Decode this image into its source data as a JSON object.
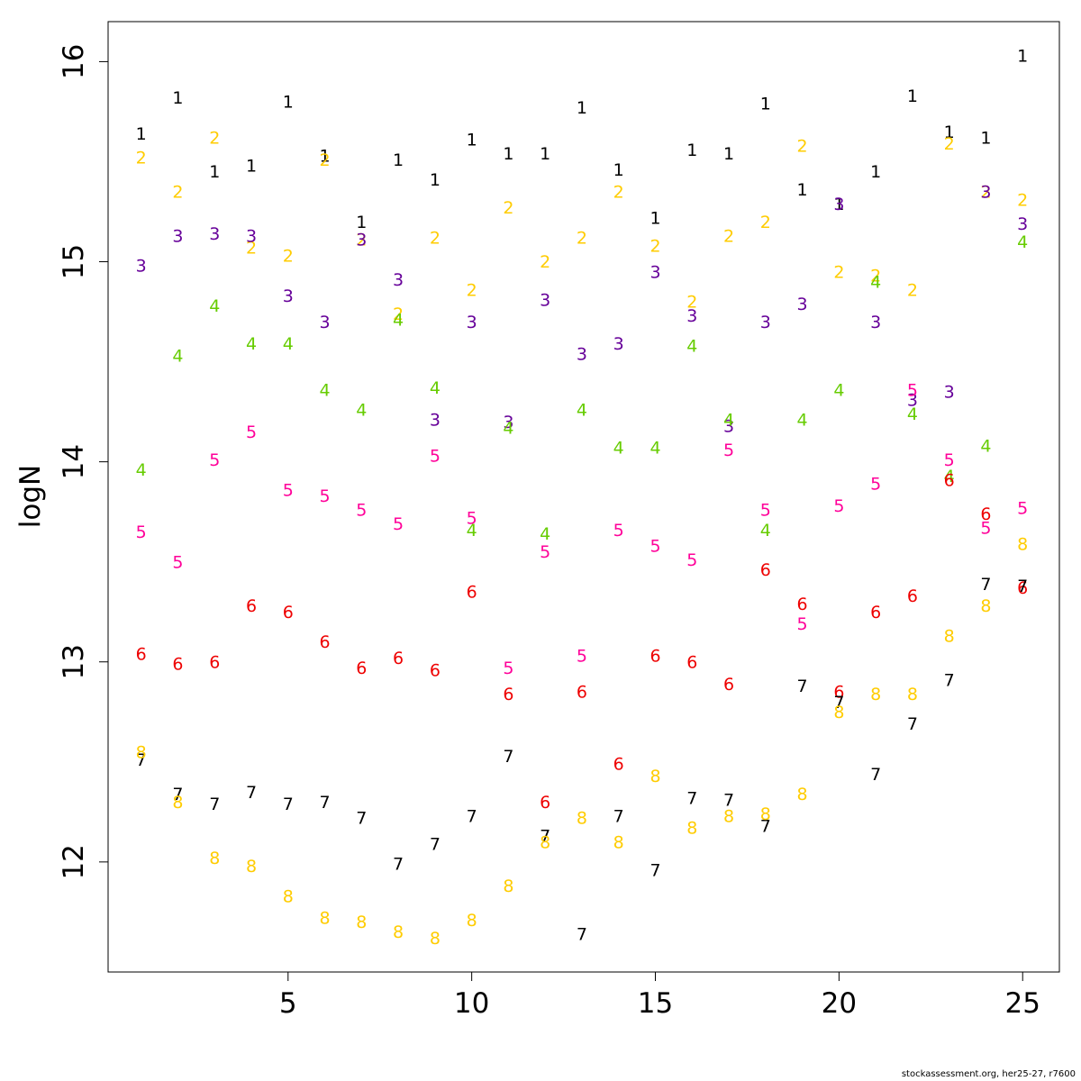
{
  "chart_data": {
    "type": "scatter",
    "ylabel": "logN",
    "xlim": [
      0.1,
      26
    ],
    "ylim": [
      11.45,
      16.2
    ],
    "x_ticks": [
      5,
      10,
      15,
      20,
      25
    ],
    "y_ticks": [
      12,
      13,
      14,
      15,
      16
    ],
    "x": [
      1,
      2,
      3,
      4,
      5,
      6,
      7,
      8,
      9,
      10,
      11,
      12,
      13,
      14,
      15,
      16,
      17,
      18,
      19,
      20,
      21,
      22,
      23,
      24,
      25
    ],
    "series": [
      {
        "name": "1",
        "color": "#000000",
        "values": [
          15.64,
          15.82,
          15.45,
          15.48,
          15.8,
          15.53,
          15.2,
          15.51,
          15.41,
          15.61,
          15.54,
          15.54,
          15.77,
          15.46,
          15.22,
          15.56,
          15.54,
          15.79,
          15.36,
          15.29,
          15.45,
          15.83,
          15.65,
          15.62,
          16.03
        ]
      },
      {
        "name": "2",
        "color": "#FFCC00",
        "values": [
          15.52,
          15.35,
          15.62,
          15.07,
          15.03,
          15.51,
          15.11,
          14.74,
          15.12,
          14.86,
          15.27,
          15.0,
          15.12,
          15.35,
          15.08,
          14.8,
          15.13,
          15.2,
          15.58,
          14.95,
          14.93,
          14.86,
          15.59,
          15.35,
          15.31
        ]
      },
      {
        "name": "3",
        "color": "#660099",
        "values": [
          14.98,
          15.13,
          15.14,
          15.13,
          14.83,
          14.7,
          15.11,
          14.91,
          14.21,
          14.7,
          14.2,
          14.81,
          14.54,
          14.59,
          14.95,
          14.73,
          14.18,
          14.7,
          14.79,
          15.29,
          14.7,
          14.31,
          14.35,
          15.35,
          15.19
        ]
      },
      {
        "name": "4",
        "color": "#66CC00",
        "values": [
          13.96,
          14.53,
          14.78,
          14.59,
          14.59,
          14.36,
          14.26,
          14.71,
          14.37,
          13.66,
          14.17,
          13.64,
          14.26,
          14.07,
          14.07,
          14.58,
          14.21,
          13.66,
          14.21,
          14.36,
          14.9,
          14.24,
          13.93,
          14.08,
          15.1
        ]
      },
      {
        "name": "5",
        "color": "#FF0099",
        "values": [
          13.65,
          13.5,
          14.01,
          14.15,
          13.86,
          13.83,
          13.76,
          13.69,
          14.03,
          13.72,
          12.97,
          13.55,
          13.03,
          13.66,
          13.58,
          13.51,
          14.06,
          13.76,
          13.19,
          13.78,
          13.89,
          14.36,
          14.01,
          13.67,
          13.77
        ]
      },
      {
        "name": "6",
        "color": "#EE0000",
        "values": [
          13.04,
          12.99,
          13.0,
          13.28,
          13.25,
          13.1,
          12.97,
          13.02,
          12.96,
          13.35,
          12.84,
          12.3,
          12.85,
          12.49,
          13.03,
          13.0,
          12.89,
          13.46,
          13.29,
          12.85,
          13.25,
          13.33,
          13.91,
          13.74,
          13.37
        ]
      },
      {
        "name": "7",
        "color": "#000000",
        "values": [
          12.51,
          12.34,
          12.29,
          12.35,
          12.29,
          12.3,
          12.22,
          11.99,
          12.09,
          12.23,
          12.53,
          12.13,
          11.64,
          12.23,
          11.96,
          12.32,
          12.31,
          12.18,
          12.88,
          12.8,
          12.44,
          12.69,
          12.91,
          13.39,
          13.38
        ]
      },
      {
        "name": "8",
        "color": "#FFCC00",
        "values": [
          12.55,
          12.3,
          12.02,
          11.98,
          11.83,
          11.72,
          11.7,
          11.65,
          11.62,
          11.71,
          11.88,
          12.1,
          12.22,
          12.1,
          12.43,
          12.17,
          12.23,
          12.24,
          12.34,
          12.75,
          12.84,
          12.84,
          13.13,
          13.28,
          13.59
        ]
      }
    ]
  },
  "footer": {
    "credit": "stockassessment.org, her25-27, r7600"
  }
}
